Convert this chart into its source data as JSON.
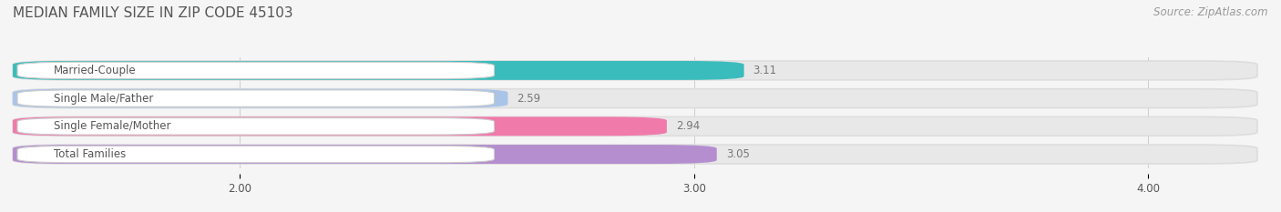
{
  "title": "MEDIAN FAMILY SIZE IN ZIP CODE 45103",
  "source": "Source: ZipAtlas.com",
  "categories": [
    "Married-Couple",
    "Single Male/Father",
    "Single Female/Mother",
    "Total Families"
  ],
  "values": [
    3.11,
    2.59,
    2.94,
    3.05
  ],
  "bar_colors": [
    "#3bbcbc",
    "#aac4e8",
    "#f07aaa",
    "#b48ecf"
  ],
  "bar_bg_color": "#e8e8e8",
  "xlim_min": 1.5,
  "xlim_max": 4.25,
  "xstart": 1.5,
  "xticks": [
    2.0,
    3.0,
    4.0
  ],
  "xtick_labels": [
    "2.00",
    "3.00",
    "4.00"
  ],
  "title_color": "#555555",
  "label_color": "#555555",
  "value_color": "#777777",
  "source_color": "#999999",
  "background_color": "#f5f5f5",
  "title_fontsize": 11,
  "label_fontsize": 8.5,
  "value_fontsize": 8.5,
  "source_fontsize": 8.5
}
